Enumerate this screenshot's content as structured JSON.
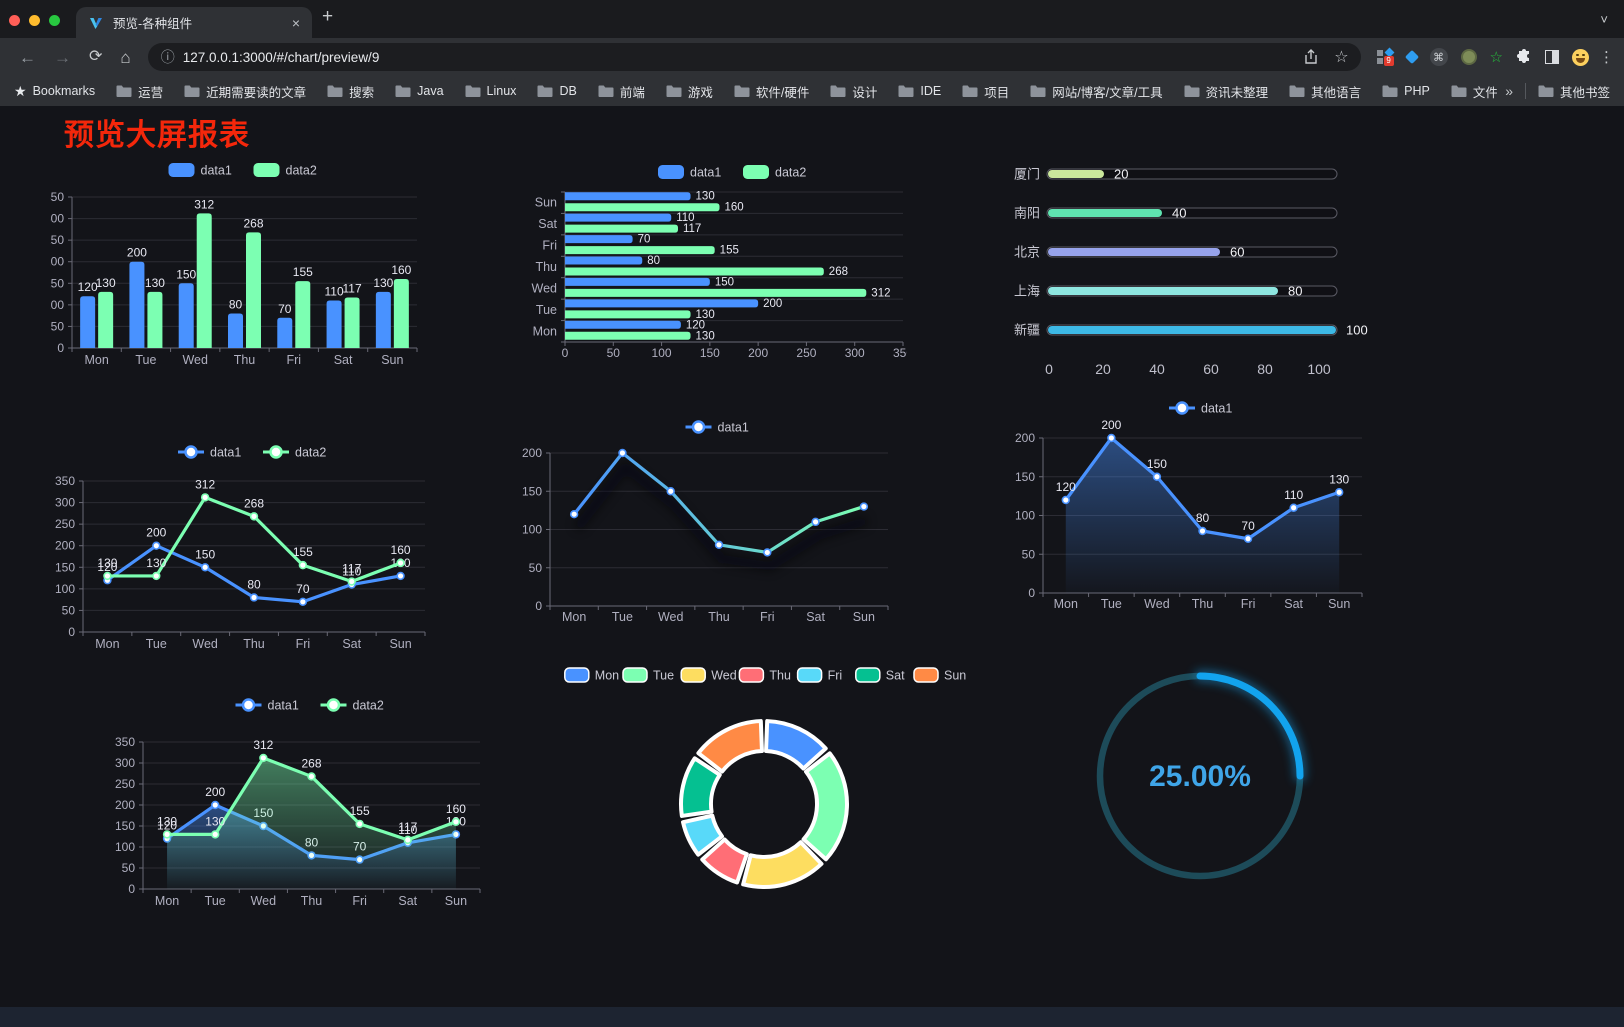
{
  "browser": {
    "tab_title": "预览-各种组件",
    "close_glyph": "×",
    "newtab_glyph": "+",
    "url": "127.0.0.1:3000/#/chart/preview/9",
    "bookmarks_label": "Bookmarks",
    "bookmark_folders": [
      "运营",
      "近期需要读的文章",
      "搜索",
      "Java",
      "Linux",
      "DB",
      "前端",
      "游戏",
      "软件/硬件",
      "设计",
      "IDE",
      "项目",
      "网站/博客/文章/工具",
      "资讯未整理",
      "其他语言",
      "PHP",
      "文件服务器"
    ],
    "overflow_chevron": "»",
    "other_bookmarks": "其他书签",
    "extension_badge": "9"
  },
  "page": {
    "title": "预览大屏报表",
    "title_color": "#f4270b"
  },
  "chart_data": [
    {
      "id": "bar-vertical",
      "type": "bar",
      "categories": [
        "Mon",
        "Tue",
        "Wed",
        "Thu",
        "Fri",
        "Sat",
        "Sun"
      ],
      "series": [
        {
          "name": "data1",
          "color": "#4992ff",
          "values": [
            120,
            200,
            150,
            80,
            70,
            110,
            130
          ]
        },
        {
          "name": "data2",
          "color": "#7cffb2",
          "values": [
            130,
            130,
            312,
            268,
            155,
            117,
            160
          ]
        }
      ],
      "ylim": [
        0,
        350
      ],
      "ystep": 50,
      "legend": true,
      "value_labels": true
    },
    {
      "id": "bar-horizontal",
      "type": "bar-h",
      "categories": [
        "Mon",
        "Tue",
        "Wed",
        "Thu",
        "Fri",
        "Sat",
        "Sun"
      ],
      "series": [
        {
          "name": "data1",
          "color": "#4992ff",
          "values": [
            120,
            200,
            150,
            80,
            70,
            110,
            130
          ]
        },
        {
          "name": "data2",
          "color": "#7cffb2",
          "values": [
            130,
            130,
            312,
            268,
            155,
            117,
            160
          ]
        }
      ],
      "xlim": [
        0,
        350
      ],
      "xstep": 50,
      "legend": true,
      "value_labels": true
    },
    {
      "id": "progress",
      "type": "progress",
      "items": [
        {
          "label": "厦门",
          "value": 20,
          "color": "#cbe79c"
        },
        {
          "label": "南阳",
          "value": 40,
          "color": "#5fe3b0"
        },
        {
          "label": "北京",
          "value": 60,
          "color": "#97a3eb"
        },
        {
          "label": "上海",
          "value": 80,
          "color": "#8ee6e0"
        },
        {
          "label": "新疆",
          "value": 100,
          "color": "#3db9e6"
        }
      ],
      "xlim": [
        0,
        100
      ],
      "xticks": [
        0,
        20,
        40,
        60,
        80,
        100
      ]
    },
    {
      "id": "line-dual",
      "type": "line",
      "categories": [
        "Mon",
        "Tue",
        "Wed",
        "Thu",
        "Fri",
        "Sat",
        "Sun"
      ],
      "series": [
        {
          "name": "data1",
          "color": "#4992ff",
          "values": [
            120,
            200,
            150,
            80,
            70,
            110,
            130
          ],
          "labels": true
        },
        {
          "name": "data2",
          "color": "#7cffb2",
          "values": [
            130,
            130,
            312,
            268,
            155,
            117,
            160
          ],
          "labels": true
        }
      ],
      "ylim": [
        0,
        350
      ],
      "ystep": 50,
      "legend": true
    },
    {
      "id": "line-gradient",
      "type": "line",
      "categories": [
        "Mon",
        "Tue",
        "Wed",
        "Thu",
        "Fri",
        "Sat",
        "Sun"
      ],
      "series": [
        {
          "name": "data1",
          "color": "#4992ff",
          "gradient": [
            "#4992ff",
            "#7cffb2"
          ],
          "values": [
            120,
            200,
            150,
            80,
            70,
            110,
            130
          ],
          "labels": false,
          "shadow": true
        }
      ],
      "ylim": [
        0,
        200
      ],
      "ystep": 50,
      "legend": true
    },
    {
      "id": "area-single",
      "type": "line",
      "categories": [
        "Mon",
        "Tue",
        "Wed",
        "Thu",
        "Fri",
        "Sat",
        "Sun"
      ],
      "series": [
        {
          "name": "data1",
          "color": "#4992ff",
          "values": [
            120,
            200,
            150,
            80,
            70,
            110,
            130
          ],
          "labels": true,
          "area": true
        }
      ],
      "ylim": [
        0,
        200
      ],
      "ystep": 50,
      "legend": true
    },
    {
      "id": "line-area-dual",
      "type": "line",
      "categories": [
        "Mon",
        "Tue",
        "Wed",
        "Thu",
        "Fri",
        "Sat",
        "Sun"
      ],
      "series": [
        {
          "name": "data1",
          "color": "#4992ff",
          "values": [
            120,
            200,
            150,
            80,
            70,
            110,
            130
          ],
          "labels": true,
          "area": true
        },
        {
          "name": "data2",
          "color": "#7cffb2",
          "values": [
            130,
            130,
            312,
            268,
            155,
            117,
            160
          ],
          "labels": true,
          "area": true
        }
      ],
      "ylim": [
        0,
        350
      ],
      "ystep": 50,
      "legend": true
    },
    {
      "id": "donut",
      "type": "donut",
      "items": [
        {
          "label": "Mon",
          "value": 120,
          "color": "#4992ff"
        },
        {
          "label": "Tue",
          "value": 200,
          "color": "#7cffb2"
        },
        {
          "label": "Wed",
          "value": 150,
          "color": "#fddd60"
        },
        {
          "label": "Thu",
          "value": 80,
          "color": "#ff6e76"
        },
        {
          "label": "Fri",
          "value": 70,
          "color": "#58d9f9"
        },
        {
          "label": "Sat",
          "value": 110,
          "color": "#05c091"
        },
        {
          "label": "Sun",
          "value": 130,
          "color": "#ff8a45"
        }
      ],
      "legend": true
    },
    {
      "id": "gauge",
      "type": "gauge",
      "value": 25,
      "display": "25.00%",
      "color": "#12a3ee",
      "track_color": "#1d4b59",
      "text_color": "#3fa5e8"
    }
  ]
}
